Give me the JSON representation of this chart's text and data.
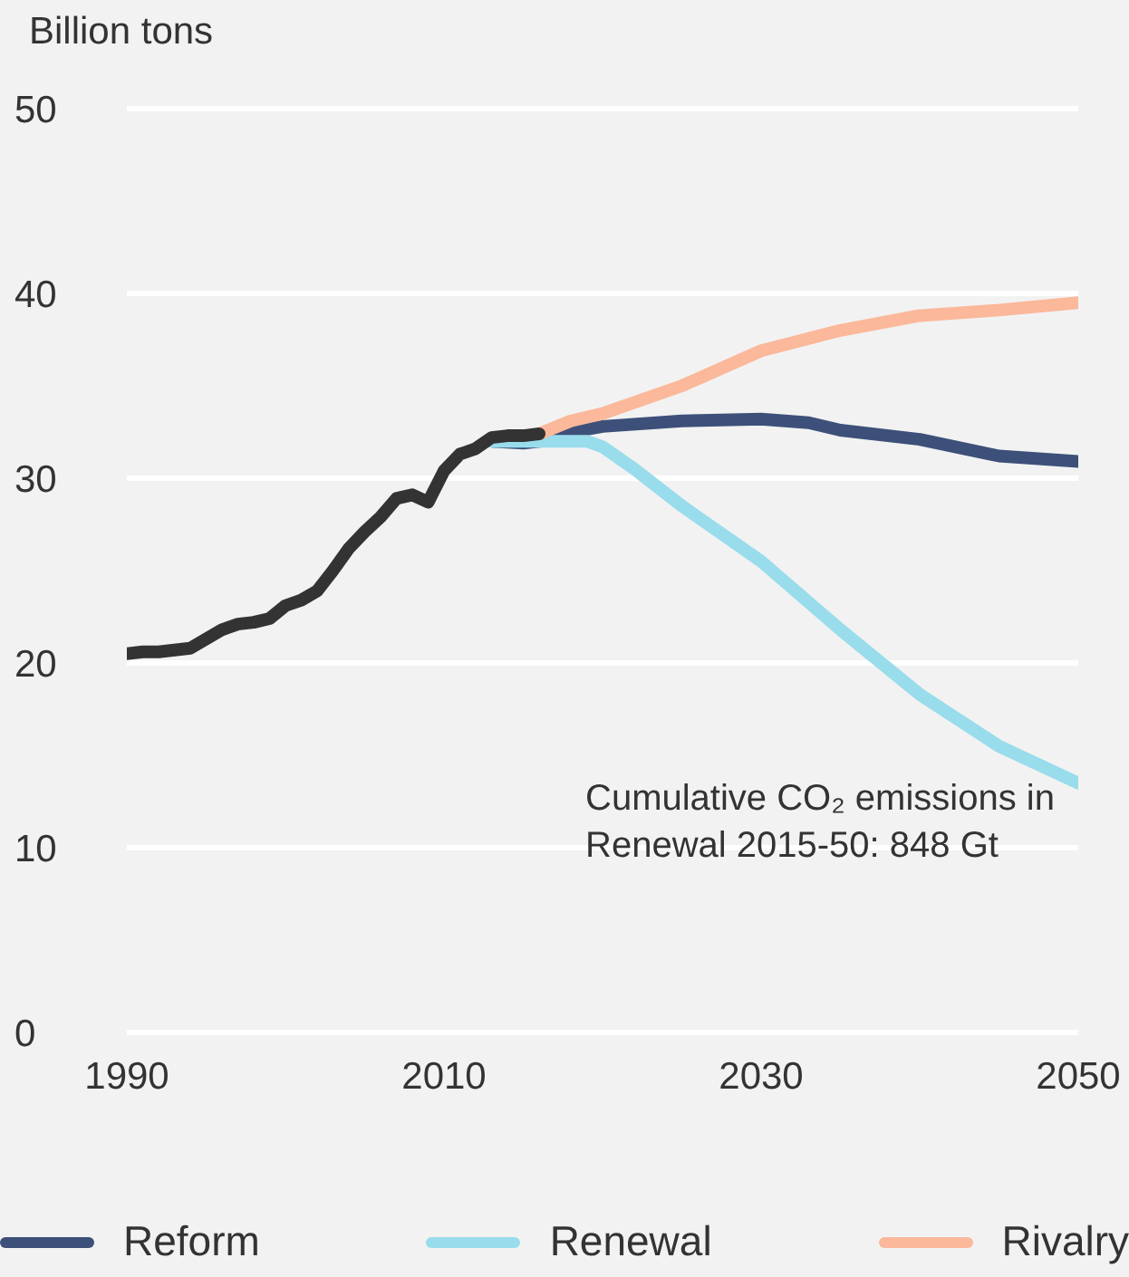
{
  "chart_data": {
    "type": "line",
    "ylabel": "Billion tons",
    "annotations": [
      "Cumulative CO₂ emissions in Renewal 2015-50: 848 Gt"
    ],
    "xlim": [
      1990,
      2050
    ],
    "xticks": [
      1990,
      2010,
      2030,
      2050
    ],
    "ylim": [
      0,
      50
    ],
    "yticks": [
      0,
      10,
      20,
      30,
      40,
      50
    ],
    "grid": "y",
    "legend": "bottom",
    "series": [
      {
        "name": "Reform",
        "color": "#3d5079",
        "x": [
          2013,
          2015,
          2016,
          2018,
          2020,
          2025,
          2030,
          2033,
          2035,
          2040,
          2045,
          2050
        ],
        "values": [
          32.0,
          31.9,
          32.0,
          32.5,
          32.8,
          33.1,
          33.2,
          33.0,
          32.6,
          32.1,
          31.2,
          30.9
        ]
      },
      {
        "name": "Renewal",
        "color": "#99dcec",
        "x": [
          2013,
          2016,
          2019,
          2020,
          2022,
          2025,
          2030,
          2035,
          2040,
          2045,
          2050
        ],
        "values": [
          32.0,
          32.0,
          32.0,
          31.7,
          30.5,
          28.5,
          25.5,
          21.8,
          18.3,
          15.5,
          13.5
        ]
      },
      {
        "name": "Rivalry",
        "color": "#fbb89a",
        "x": [
          2016,
          2018,
          2020,
          2025,
          2030,
          2035,
          2040,
          2045,
          2050
        ],
        "values": [
          32.4,
          33.1,
          33.5,
          35.0,
          36.9,
          38.0,
          38.8,
          39.1,
          39.5
        ]
      },
      {
        "color": "#333333",
        "x": [
          1990,
          1991,
          1992,
          1993,
          1994,
          1995,
          1996,
          1997,
          1998,
          1999,
          2000,
          2001,
          2002,
          2003,
          2004,
          2005,
          2006,
          2007,
          2008,
          2009,
          2010,
          2011,
          2012,
          2013,
          2014,
          2015,
          2016
        ],
        "values": [
          20.5,
          20.6,
          20.6,
          20.7,
          20.8,
          21.3,
          21.8,
          22.1,
          22.2,
          22.4,
          23.1,
          23.4,
          23.9,
          25.0,
          26.2,
          27.1,
          27.9,
          28.9,
          29.1,
          28.7,
          30.4,
          31.3,
          31.6,
          32.2,
          32.3,
          32.3,
          32.4
        ]
      }
    ]
  }
}
